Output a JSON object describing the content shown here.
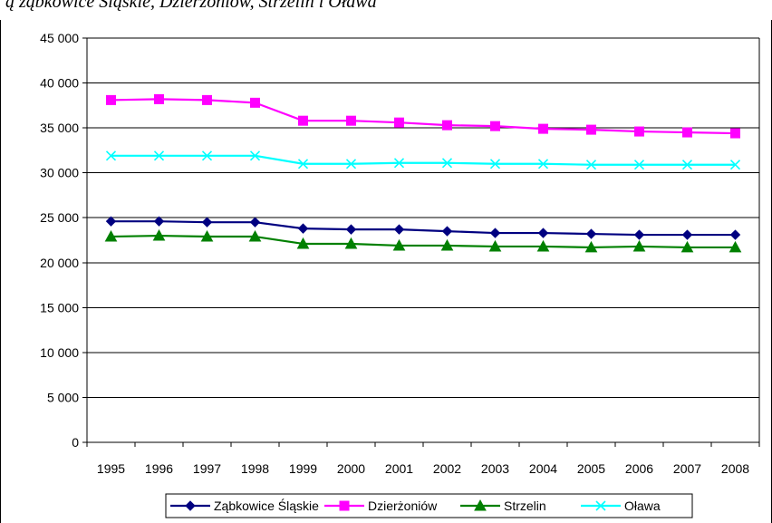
{
  "header_fragment": "ą żąbkowice Śląskie, Dzierżoniów, Strzelin i Oława",
  "chart_data": {
    "type": "line",
    "title": "",
    "xlabel": "",
    "ylabel": "",
    "categories": [
      "1995",
      "1996",
      "1997",
      "1998",
      "1999",
      "2000",
      "2001",
      "2002",
      "2003",
      "2004",
      "2005",
      "2006",
      "2007",
      "2008"
    ],
    "ylim": [
      0,
      45000
    ],
    "yticks": [
      0,
      5000,
      10000,
      15000,
      20000,
      25000,
      30000,
      35000,
      40000,
      45000
    ],
    "ytick_labels": [
      "0",
      "5 000",
      "10 000",
      "15 000",
      "20 000",
      "25 000",
      "30 000",
      "35 000",
      "40 000",
      "45 000"
    ],
    "grid": true,
    "legend_position": "bottom",
    "series": [
      {
        "name": "Ząbkowice Śląskie",
        "color": "#000080",
        "marker": "diamond",
        "values": [
          24600,
          24600,
          24500,
          24500,
          23800,
          23700,
          23700,
          23500,
          23300,
          23300,
          23200,
          23100,
          23100,
          23100
        ]
      },
      {
        "name": "Dzierżoniów",
        "color": "#ff00ff",
        "marker": "square",
        "values": [
          38100,
          38200,
          38100,
          37800,
          35800,
          35800,
          35600,
          35300,
          35200,
          34900,
          34800,
          34600,
          34500,
          34400
        ]
      },
      {
        "name": "Strzelin",
        "color": "#008000",
        "marker": "triangle",
        "values": [
          22900,
          23000,
          22900,
          22900,
          22100,
          22100,
          21900,
          21900,
          21800,
          21800,
          21700,
          21800,
          21700,
          21700
        ]
      },
      {
        "name": "Oława",
        "color": "#00ffff",
        "marker": "x",
        "values": [
          31900,
          31900,
          31900,
          31900,
          31000,
          31000,
          31100,
          31100,
          31000,
          31000,
          30900,
          30900,
          30900,
          30900
        ]
      }
    ]
  }
}
